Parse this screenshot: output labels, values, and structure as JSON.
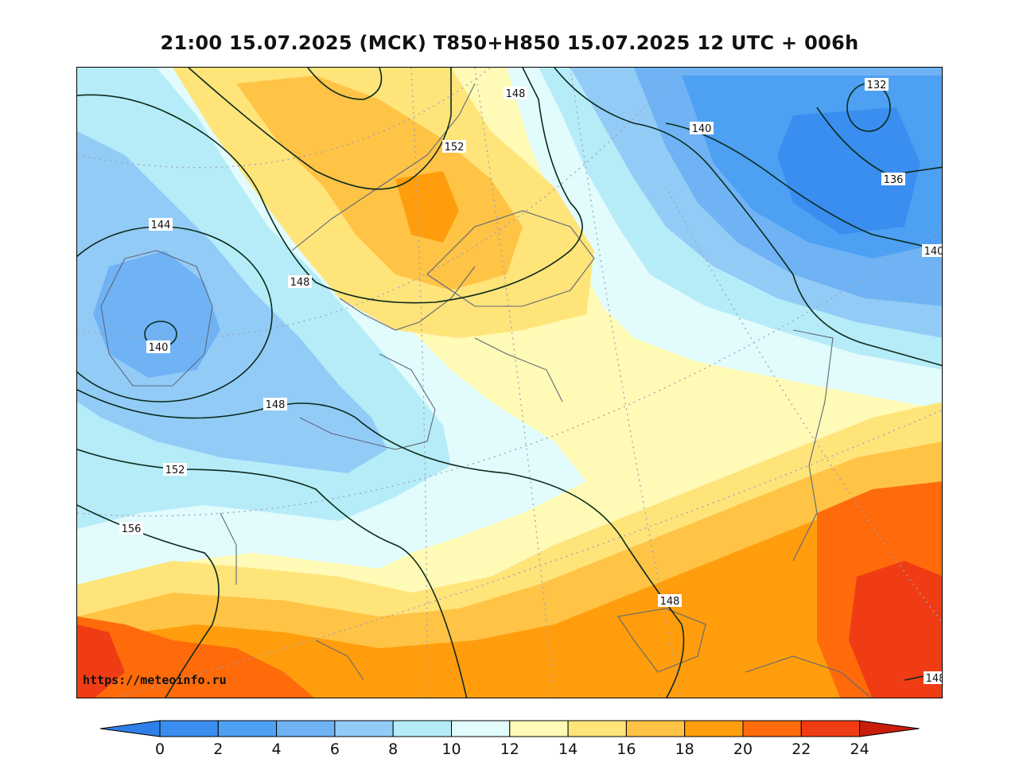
{
  "title": "21:00 15.07.2025 (МСК) T850+H850 15.07.2025 12 UTC + 006h",
  "watermark": "https://meteoinfo.ru",
  "colorbar": {
    "ticks": [
      "0",
      "2",
      "4",
      "6",
      "8",
      "10",
      "12",
      "14",
      "16",
      "18",
      "20",
      "22",
      "24"
    ],
    "colors": [
      "#3a8ef0",
      "#4da0f2",
      "#6fb3f5",
      "#93cbf7",
      "#b5ecf7",
      "#e2fbfd",
      "#fffab5",
      "#ffe47a",
      "#ffc346",
      "#ff9d0c",
      "#ff6a0a",
      "#f03c14"
    ],
    "under_color": "#2f7fe8",
    "over_color": "#c81e0a"
  },
  "contour_labels": [
    {
      "text": "148"
    },
    {
      "text": "152"
    },
    {
      "text": "140"
    },
    {
      "text": "132"
    },
    {
      "text": "136"
    },
    {
      "text": "140"
    },
    {
      "text": "144"
    },
    {
      "text": "148"
    },
    {
      "text": "140"
    },
    {
      "text": "148"
    },
    {
      "text": "152"
    },
    {
      "text": "156"
    },
    {
      "text": "148"
    },
    {
      "text": "148"
    }
  ]
}
